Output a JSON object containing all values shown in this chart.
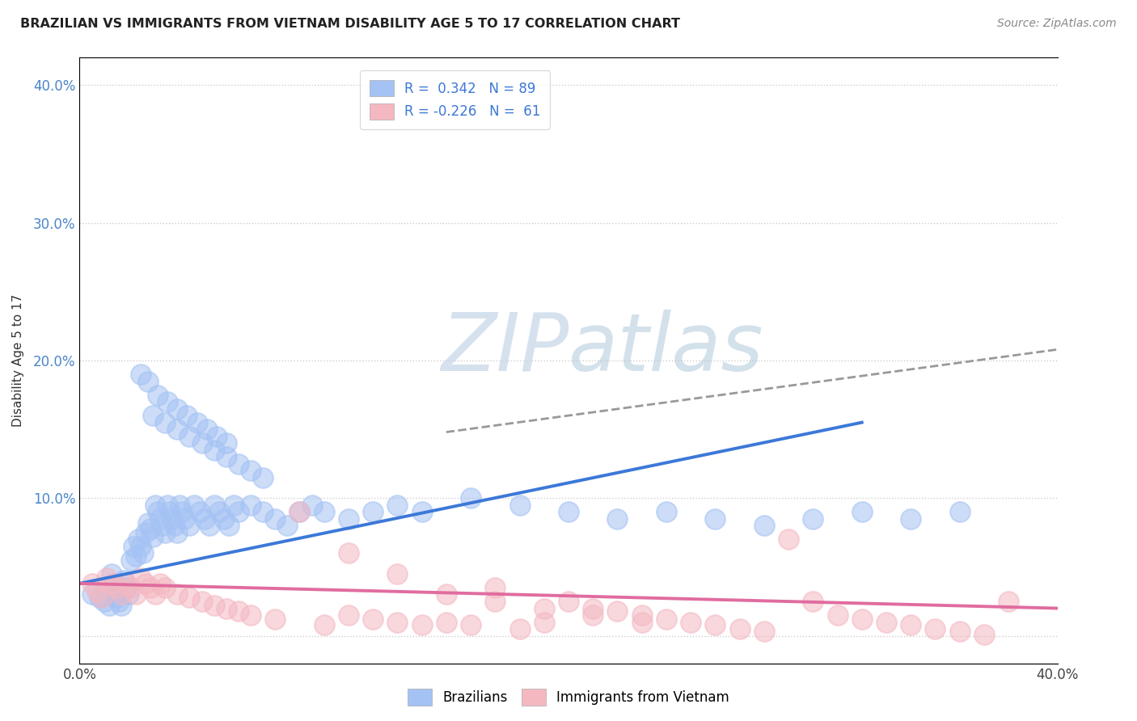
{
  "title": "BRAZILIAN VS IMMIGRANTS FROM VIETNAM DISABILITY AGE 5 TO 17 CORRELATION CHART",
  "source": "Source: ZipAtlas.com",
  "ylabel": "Disability Age 5 to 17",
  "xmin": 0.0,
  "xmax": 0.4,
  "ymin": -0.02,
  "ymax": 0.42,
  "blue_color": "#a4c2f4",
  "pink_color": "#f4b8c1",
  "blue_line_color": "#3c78d8",
  "pink_line_color": "#e06c9f",
  "dashed_line_color": "#999999",
  "grid_color": "#cccccc",
  "legend_blue_label": "R =  0.342   N = 89",
  "legend_pink_label": "R = -0.226   N =  61",
  "blue_scatter_x": [
    0.005,
    0.008,
    0.01,
    0.012,
    0.013,
    0.014,
    0.015,
    0.015,
    0.016,
    0.017,
    0.018,
    0.019,
    0.02,
    0.021,
    0.022,
    0.023,
    0.024,
    0.025,
    0.026,
    0.027,
    0.028,
    0.029,
    0.03,
    0.031,
    0.032,
    0.033,
    0.034,
    0.035,
    0.036,
    0.037,
    0.038,
    0.039,
    0.04,
    0.041,
    0.042,
    0.043,
    0.045,
    0.047,
    0.049,
    0.051,
    0.053,
    0.055,
    0.057,
    0.059,
    0.061,
    0.063,
    0.065,
    0.07,
    0.075,
    0.08,
    0.085,
    0.09,
    0.095,
    0.1,
    0.11,
    0.12,
    0.13,
    0.14,
    0.16,
    0.18,
    0.2,
    0.22,
    0.24,
    0.26,
    0.28,
    0.3,
    0.32,
    0.34,
    0.36,
    0.03,
    0.035,
    0.04,
    0.045,
    0.05,
    0.055,
    0.06,
    0.065,
    0.07,
    0.075,
    0.025,
    0.028,
    0.032,
    0.036,
    0.04,
    0.044,
    0.048,
    0.052,
    0.056,
    0.06
  ],
  "blue_scatter_y": [
    0.03,
    0.028,
    0.025,
    0.022,
    0.045,
    0.038,
    0.032,
    0.028,
    0.025,
    0.022,
    0.04,
    0.035,
    0.03,
    0.055,
    0.065,
    0.058,
    0.07,
    0.065,
    0.06,
    0.075,
    0.082,
    0.078,
    0.072,
    0.095,
    0.09,
    0.085,
    0.08,
    0.075,
    0.095,
    0.09,
    0.085,
    0.08,
    0.075,
    0.095,
    0.09,
    0.085,
    0.08,
    0.095,
    0.09,
    0.085,
    0.08,
    0.095,
    0.09,
    0.085,
    0.08,
    0.095,
    0.09,
    0.095,
    0.09,
    0.085,
    0.08,
    0.09,
    0.095,
    0.09,
    0.085,
    0.09,
    0.095,
    0.09,
    0.1,
    0.095,
    0.09,
    0.085,
    0.09,
    0.085,
    0.08,
    0.085,
    0.09,
    0.085,
    0.09,
    0.16,
    0.155,
    0.15,
    0.145,
    0.14,
    0.135,
    0.13,
    0.125,
    0.12,
    0.115,
    0.19,
    0.185,
    0.175,
    0.17,
    0.165,
    0.16,
    0.155,
    0.15,
    0.145,
    0.14
  ],
  "pink_scatter_x": [
    0.005,
    0.007,
    0.009,
    0.011,
    0.013,
    0.015,
    0.017,
    0.019,
    0.021,
    0.023,
    0.025,
    0.027,
    0.029,
    0.031,
    0.033,
    0.035,
    0.04,
    0.045,
    0.05,
    0.055,
    0.06,
    0.065,
    0.07,
    0.08,
    0.09,
    0.1,
    0.11,
    0.12,
    0.13,
    0.14,
    0.15,
    0.16,
    0.17,
    0.18,
    0.19,
    0.2,
    0.21,
    0.22,
    0.23,
    0.24,
    0.25,
    0.26,
    0.27,
    0.28,
    0.29,
    0.3,
    0.31,
    0.32,
    0.33,
    0.34,
    0.35,
    0.36,
    0.37,
    0.38,
    0.11,
    0.13,
    0.15,
    0.17,
    0.19,
    0.21,
    0.23
  ],
  "pink_scatter_y": [
    0.038,
    0.032,
    0.028,
    0.042,
    0.038,
    0.035,
    0.03,
    0.038,
    0.035,
    0.03,
    0.042,
    0.038,
    0.035,
    0.03,
    0.038,
    0.035,
    0.03,
    0.028,
    0.025,
    0.022,
    0.02,
    0.018,
    0.015,
    0.012,
    0.09,
    0.008,
    0.015,
    0.012,
    0.01,
    0.008,
    0.01,
    0.008,
    0.035,
    0.005,
    0.01,
    0.025,
    0.02,
    0.018,
    0.015,
    0.012,
    0.01,
    0.008,
    0.005,
    0.003,
    0.07,
    0.025,
    0.015,
    0.012,
    0.01,
    0.008,
    0.005,
    0.003,
    0.001,
    0.025,
    0.06,
    0.045,
    0.03,
    0.025,
    0.02,
    0.015,
    0.01
  ],
  "blue_trend_x": [
    0.0,
    0.32
  ],
  "blue_trend_y": [
    0.038,
    0.155
  ],
  "pink_trend_x": [
    0.0,
    0.4
  ],
  "pink_trend_y": [
    0.038,
    0.02
  ],
  "dashed_trend_x": [
    0.15,
    0.4
  ],
  "dashed_trend_y": [
    0.148,
    0.208
  ]
}
